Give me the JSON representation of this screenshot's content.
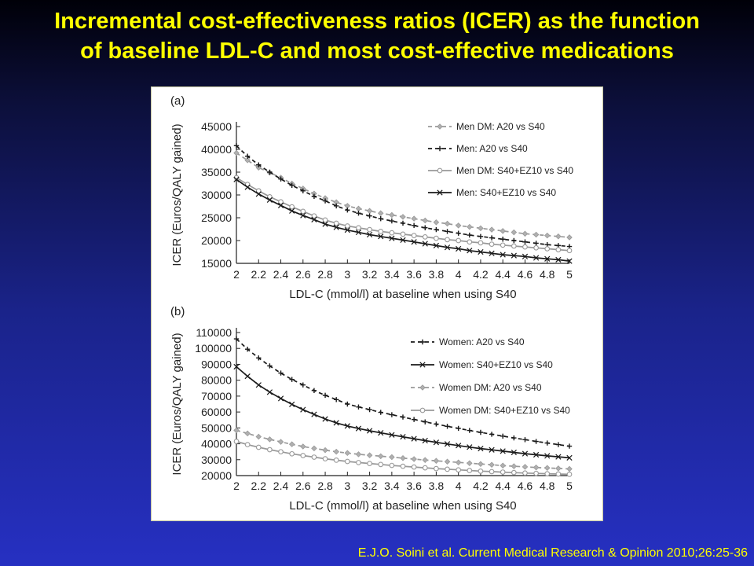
{
  "slide": {
    "title_line1": "Incremental cost-effectiveness ratios (ICER) as the function",
    "title_line2": "of baseline LDL-C and most cost-effective medications",
    "citation": "E.J.O. Soini et al. Current Medical Research & Opinion 2010;26:25-36"
  },
  "chart_data": [
    {
      "type": "line",
      "panel_label": "(a)",
      "xlabel": "LDL-C (mmol/l) at baseline when using S40",
      "ylabel": "ICER (Euros/QALY gained)",
      "xlim": [
        2,
        5
      ],
      "ylim": [
        15000,
        45000
      ],
      "xticks": [
        2,
        2.2,
        2.4,
        2.6,
        2.8,
        3,
        3.2,
        3.4,
        3.6,
        3.8,
        4,
        4.2,
        4.4,
        4.6,
        4.8,
        5
      ],
      "xtick_labels": [
        "2",
        "2.2",
        "2.4",
        "2.6",
        "2.8",
        "3",
        "3.2",
        "3.4",
        "3.6",
        "3.8",
        "4",
        "4.2",
        "4.4",
        "4.6",
        "4.8",
        "5"
      ],
      "yticks": [
        15000,
        20000,
        25000,
        30000,
        35000,
        40000,
        45000
      ],
      "ytick_labels": [
        "15000",
        "20000",
        "25000",
        "30000",
        "35000",
        "40000",
        "45000"
      ],
      "grid": false,
      "legend_position": "top-right",
      "x": [
        2,
        2.1,
        2.2,
        2.3,
        2.4,
        2.5,
        2.6,
        2.7,
        2.8,
        2.9,
        3,
        3.1,
        3.2,
        3.3,
        3.4,
        3.5,
        3.6,
        3.7,
        3.8,
        3.9,
        4,
        4.1,
        4.2,
        4.3,
        4.4,
        4.5,
        4.6,
        4.7,
        4.8,
        4.9,
        5
      ],
      "series": [
        {
          "name": "Men DM: A20 vs S40",
          "color": "#999999",
          "dash": "5,4",
          "marker": "diamond",
          "values": [
            39200,
            37600,
            36000,
            34900,
            33800,
            32500,
            31400,
            30300,
            29300,
            28400,
            27600,
            27000,
            26500,
            26000,
            25600,
            25200,
            24800,
            24400,
            24000,
            23700,
            23300,
            23000,
            22700,
            22400,
            22100,
            21800,
            21500,
            21300,
            21100,
            20900,
            20700
          ]
        },
        {
          "name": "Men: A20 vs S40",
          "color": "#1a1a1a",
          "dash": "5,4",
          "marker": "plus",
          "values": [
            40800,
            38500,
            36600,
            35000,
            33500,
            32100,
            30900,
            29700,
            28700,
            27600,
            26700,
            26000,
            25400,
            24800,
            24300,
            23800,
            23300,
            22800,
            22400,
            22000,
            21600,
            21200,
            20900,
            20600,
            20300,
            20000,
            19700,
            19400,
            19100,
            18900,
            18700
          ]
        },
        {
          "name": "Men DM: S40+EZ10 vs S40",
          "color": "#999999",
          "dash": "",
          "marker": "circle",
          "values": [
            33800,
            32300,
            30900,
            29600,
            28500,
            27400,
            26400,
            25400,
            24500,
            23800,
            23200,
            22800,
            22400,
            22000,
            21700,
            21400,
            21100,
            20800,
            20500,
            20200,
            20000,
            19700,
            19500,
            19200,
            19000,
            18800,
            18600,
            18400,
            18200,
            18000,
            17800
          ]
        },
        {
          "name": "Men: S40+EZ10 vs S40",
          "color": "#1a1a1a",
          "dash": "",
          "marker": "x",
          "values": [
            33400,
            31700,
            30200,
            28900,
            27700,
            26500,
            25500,
            24600,
            23600,
            22900,
            22300,
            21800,
            21300,
            20900,
            20500,
            20100,
            19700,
            19300,
            18900,
            18500,
            18200,
            17800,
            17500,
            17200,
            16900,
            16700,
            16500,
            16200,
            16000,
            15800,
            15500
          ]
        }
      ]
    },
    {
      "type": "line",
      "panel_label": "(b)",
      "xlabel": "LDL-C (mmol/l) at baseline when using S40",
      "ylabel": "ICER (Euros/QALY gained)",
      "xlim": [
        2,
        5
      ],
      "ylim": [
        20000,
        110000
      ],
      "xticks": [
        2,
        2.2,
        2.4,
        2.6,
        2.8,
        3,
        3.2,
        3.4,
        3.6,
        3.8,
        4,
        4.2,
        4.4,
        4.6,
        4.8,
        5
      ],
      "xtick_labels": [
        "2",
        "2.2",
        "2.4",
        "2.6",
        "2.8",
        "3",
        "3.2",
        "3.4",
        "3.6",
        "3.8",
        "4",
        "4.2",
        "4.4",
        "4.6",
        "4.8",
        "5"
      ],
      "yticks": [
        20000,
        30000,
        40000,
        50000,
        60000,
        70000,
        80000,
        90000,
        100000,
        110000
      ],
      "ytick_labels": [
        "20000",
        "30000",
        "40000",
        "50000",
        "60000",
        "70000",
        "80000",
        "90000",
        "100000",
        "110000"
      ],
      "grid": false,
      "legend_position": "top-right",
      "x": [
        2,
        2.1,
        2.2,
        2.3,
        2.4,
        2.5,
        2.6,
        2.7,
        2.8,
        2.9,
        3,
        3.1,
        3.2,
        3.3,
        3.4,
        3.5,
        3.6,
        3.7,
        3.8,
        3.9,
        4,
        4.1,
        4.2,
        4.3,
        4.4,
        4.5,
        4.6,
        4.7,
        4.8,
        4.9,
        5
      ],
      "series": [
        {
          "name": "Women: A20 vs S40",
          "color": "#1a1a1a",
          "dash": "5,4",
          "marker": "plus",
          "values": [
            106000,
            99500,
            94000,
            89000,
            84500,
            80500,
            77000,
            73500,
            70500,
            67800,
            65000,
            63200,
            61500,
            59800,
            58300,
            56800,
            55300,
            53800,
            52400,
            51000,
            49700,
            48400,
            47200,
            46000,
            44800,
            43700,
            42600,
            41500,
            40500,
            39500,
            38500
          ]
        },
        {
          "name": "Women: S40+EZ10 vs S40",
          "color": "#1a1a1a",
          "dash": "",
          "marker": "x",
          "values": [
            88500,
            82500,
            77000,
            72500,
            68500,
            64800,
            61500,
            58500,
            55600,
            53200,
            51200,
            49600,
            48200,
            46900,
            45600,
            44400,
            43200,
            42000,
            40900,
            39900,
            38900,
            37900,
            37000,
            36200,
            35400,
            34600,
            33800,
            33100,
            32400,
            31800,
            31200
          ]
        },
        {
          "name": "Women DM: A20 vs S40",
          "color": "#999999",
          "dash": "5,4",
          "marker": "diamond",
          "values": [
            48500,
            46500,
            44500,
            42800,
            41200,
            39700,
            38300,
            37100,
            36000,
            35000,
            34200,
            33400,
            32800,
            32200,
            31600,
            31000,
            30400,
            29800,
            29300,
            28800,
            28300,
            27800,
            27300,
            26800,
            26300,
            25900,
            25500,
            25100,
            24800,
            24500,
            24200
          ]
        },
        {
          "name": "Women DM: S40+EZ10 vs S40",
          "color": "#999999",
          "dash": "",
          "marker": "circle",
          "values": [
            41500,
            39500,
            37800,
            36300,
            35000,
            33700,
            32600,
            31600,
            30600,
            29700,
            28900,
            28200,
            27600,
            27000,
            26400,
            25900,
            25400,
            24900,
            24400,
            24000,
            23600,
            23200,
            22800,
            22500,
            22200,
            21900,
            21600,
            21400,
            21200,
            21000,
            20800
          ]
        }
      ]
    }
  ]
}
